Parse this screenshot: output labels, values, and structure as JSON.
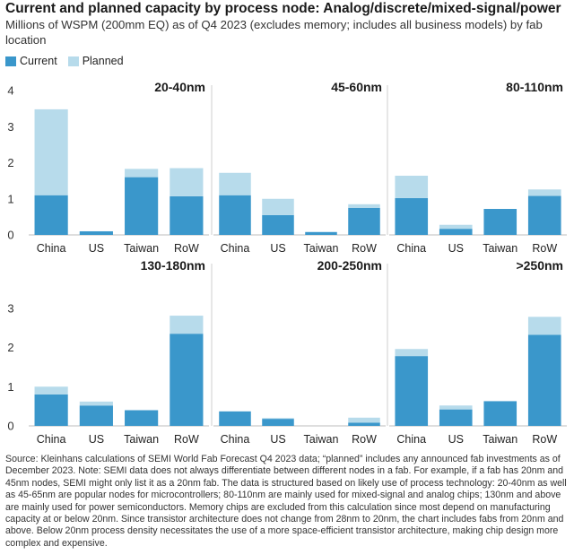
{
  "header": {
    "title": "Current and planned capacity by process node: Analog/discrete/mixed-signal/power",
    "subtitle": "Millions of WSPM (200mm EQ) as of Q4 2023 (excludes memory; includes all business models) by fab location"
  },
  "legend": {
    "current_label": "Current",
    "planned_label": "Planned",
    "current_color": "#3a97cb",
    "planned_color": "#b7dbeb"
  },
  "chart_data": [
    {
      "type": "bar",
      "stacked": true,
      "title": "20-40nm",
      "categories": [
        "China",
        "US",
        "Taiwan",
        "RoW"
      ],
      "series": [
        {
          "name": "Current",
          "values": [
            1.1,
            0.1,
            1.6,
            1.07
          ]
        },
        {
          "name": "Planned",
          "values": [
            2.38,
            0.0,
            0.23,
            0.78
          ]
        }
      ],
      "ylim": [
        0,
        4
      ],
      "yticks": [
        "0",
        "1",
        "2",
        "3",
        "4"
      ],
      "grid": false
    },
    {
      "type": "bar",
      "stacked": true,
      "title": "45-60nm",
      "categories": [
        "China",
        "US",
        "Taiwan",
        "RoW"
      ],
      "series": [
        {
          "name": "Current",
          "values": [
            1.1,
            0.55,
            0.08,
            0.75
          ]
        },
        {
          "name": "Planned",
          "values": [
            0.62,
            0.45,
            0.0,
            0.1
          ]
        }
      ],
      "ylim": [
        0,
        4
      ],
      "grid": false
    },
    {
      "type": "bar",
      "stacked": true,
      "title": "80-110nm",
      "categories": [
        "China",
        "US",
        "Taiwan",
        "RoW"
      ],
      "series": [
        {
          "name": "Current",
          "values": [
            1.02,
            0.17,
            0.72,
            1.08
          ]
        },
        {
          "name": "Planned",
          "values": [
            0.62,
            0.11,
            0.0,
            0.18
          ]
        }
      ],
      "ylim": [
        0,
        4
      ],
      "grid": false
    },
    {
      "type": "bar",
      "stacked": true,
      "title": "130-180nm",
      "categories": [
        "China",
        "US",
        "Taiwan",
        "RoW"
      ],
      "series": [
        {
          "name": "Current",
          "values": [
            0.8,
            0.52,
            0.4,
            2.35
          ]
        },
        {
          "name": "Planned",
          "values": [
            0.2,
            0.1,
            0.0,
            0.46
          ]
        }
      ],
      "ylim": [
        0,
        4
      ],
      "yticks": [
        "0",
        "1",
        "2",
        "3"
      ],
      "grid": false
    },
    {
      "type": "bar",
      "stacked": true,
      "title": "200-250nm",
      "categories": [
        "China",
        "US",
        "Taiwan",
        "RoW"
      ],
      "series": [
        {
          "name": "Current",
          "values": [
            0.37,
            0.18,
            0.0,
            0.08
          ]
        },
        {
          "name": "Planned",
          "values": [
            0.0,
            0.02,
            0.0,
            0.13
          ]
        }
      ],
      "ylim": [
        0,
        4
      ],
      "grid": false
    },
    {
      "type": "bar",
      "stacked": true,
      "title": ">250nm",
      "categories": [
        "China",
        "US",
        "Taiwan",
        "RoW"
      ],
      "series": [
        {
          "name": "Current",
          "values": [
            1.78,
            0.42,
            0.63,
            2.32
          ]
        },
        {
          "name": "Planned",
          "values": [
            0.18,
            0.1,
            0.0,
            0.46
          ]
        }
      ],
      "ylim": [
        0,
        4
      ],
      "grid": false
    }
  ],
  "source": "Source: Kleinhans calculations of SEMI World Fab Forecast Q4 2023 data; “planned” includes any announced fab investments as of December 2023. Note: SEMI data does not always differentiate between different nodes in a fab. For example, if a fab has 20nm and 45nm nodes, SEMI might only list it as a 20nm fab. The data is structured based on likely use of process technology: 20-40nm as well as 45-65nm are popular nodes for microcontrollers; 80-110nm are mainly used for mixed-signal and analog chips; 130nm and above are mainly used for power semiconductors. Memory chips are excluded from this calculation since most depend on manufacturing capacity at or below 20nm. Since transistor architecture does not change from 28nm to 20nm, the chart includes fabs from 20nm and above. Below 20nm process density necessitates the use of a more space-efficient transistor architecture, making chip design more complex and expensive."
}
